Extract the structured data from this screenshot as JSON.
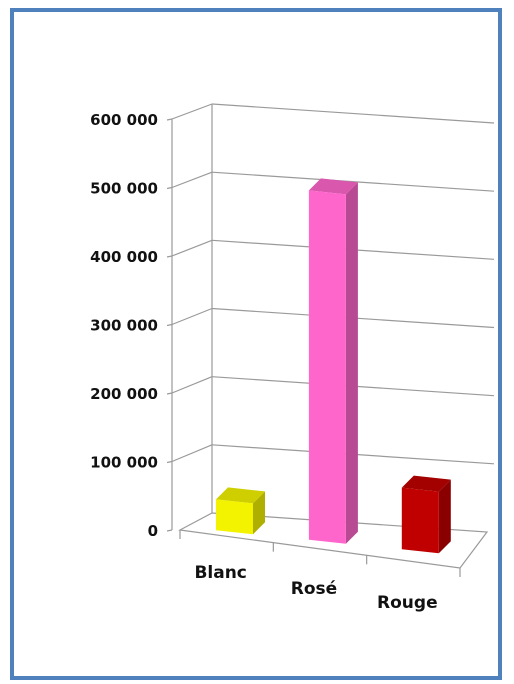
{
  "chart_data": {
    "type": "bar",
    "style": "3d-column",
    "categories": [
      "Blanc",
      "Rosé",
      "Rouge"
    ],
    "values": [
      45000,
      510000,
      90000
    ],
    "colors": [
      "#f3f300",
      "#ff66cc",
      "#c00000"
    ],
    "ylim": [
      0,
      600000
    ],
    "yticks": [
      "0",
      "100 000",
      "200 000",
      "300 000",
      "400 000",
      "500 000",
      "600 000"
    ],
    "grid": true,
    "title": "",
    "xlabel": "",
    "ylabel": ""
  }
}
